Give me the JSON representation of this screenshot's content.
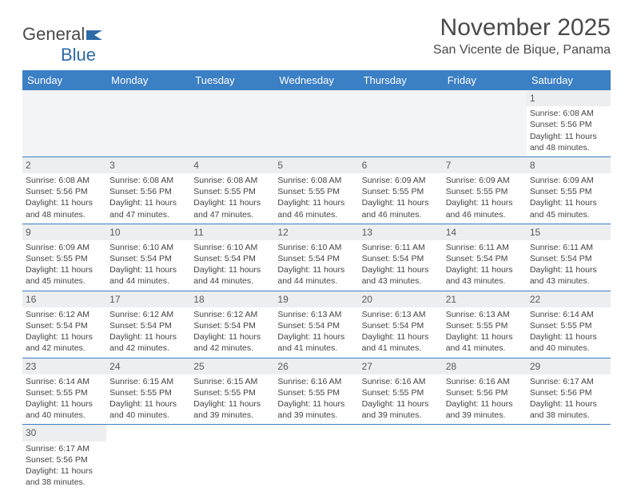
{
  "logo": {
    "text_main": "General",
    "text_accent": "Blue"
  },
  "title": "November 2025",
  "location": "San Vicente de Bique, Panama",
  "colors": {
    "header_bg": "#3b7fc4",
    "header_text": "#ffffff",
    "daynum_bg": "#eceeef",
    "border": "#3b7fc4",
    "text": "#444444",
    "logo_accent": "#2d6aa8"
  },
  "dayHeaders": [
    "Sunday",
    "Monday",
    "Tuesday",
    "Wednesday",
    "Thursday",
    "Friday",
    "Saturday"
  ],
  "weeks": [
    [
      null,
      null,
      null,
      null,
      null,
      null,
      {
        "n": "1",
        "sr": "6:08 AM",
        "ss": "5:56 PM",
        "dl": "11 hours and 48 minutes."
      }
    ],
    [
      {
        "n": "2",
        "sr": "6:08 AM",
        "ss": "5:56 PM",
        "dl": "11 hours and 48 minutes."
      },
      {
        "n": "3",
        "sr": "6:08 AM",
        "ss": "5:56 PM",
        "dl": "11 hours and 47 minutes."
      },
      {
        "n": "4",
        "sr": "6:08 AM",
        "ss": "5:55 PM",
        "dl": "11 hours and 47 minutes."
      },
      {
        "n": "5",
        "sr": "6:08 AM",
        "ss": "5:55 PM",
        "dl": "11 hours and 46 minutes."
      },
      {
        "n": "6",
        "sr": "6:09 AM",
        "ss": "5:55 PM",
        "dl": "11 hours and 46 minutes."
      },
      {
        "n": "7",
        "sr": "6:09 AM",
        "ss": "5:55 PM",
        "dl": "11 hours and 46 minutes."
      },
      {
        "n": "8",
        "sr": "6:09 AM",
        "ss": "5:55 PM",
        "dl": "11 hours and 45 minutes."
      }
    ],
    [
      {
        "n": "9",
        "sr": "6:09 AM",
        "ss": "5:55 PM",
        "dl": "11 hours and 45 minutes."
      },
      {
        "n": "10",
        "sr": "6:10 AM",
        "ss": "5:54 PM",
        "dl": "11 hours and 44 minutes."
      },
      {
        "n": "11",
        "sr": "6:10 AM",
        "ss": "5:54 PM",
        "dl": "11 hours and 44 minutes."
      },
      {
        "n": "12",
        "sr": "6:10 AM",
        "ss": "5:54 PM",
        "dl": "11 hours and 44 minutes."
      },
      {
        "n": "13",
        "sr": "6:11 AM",
        "ss": "5:54 PM",
        "dl": "11 hours and 43 minutes."
      },
      {
        "n": "14",
        "sr": "6:11 AM",
        "ss": "5:54 PM",
        "dl": "11 hours and 43 minutes."
      },
      {
        "n": "15",
        "sr": "6:11 AM",
        "ss": "5:54 PM",
        "dl": "11 hours and 43 minutes."
      }
    ],
    [
      {
        "n": "16",
        "sr": "6:12 AM",
        "ss": "5:54 PM",
        "dl": "11 hours and 42 minutes."
      },
      {
        "n": "17",
        "sr": "6:12 AM",
        "ss": "5:54 PM",
        "dl": "11 hours and 42 minutes."
      },
      {
        "n": "18",
        "sr": "6:12 AM",
        "ss": "5:54 PM",
        "dl": "11 hours and 42 minutes."
      },
      {
        "n": "19",
        "sr": "6:13 AM",
        "ss": "5:54 PM",
        "dl": "11 hours and 41 minutes."
      },
      {
        "n": "20",
        "sr": "6:13 AM",
        "ss": "5:54 PM",
        "dl": "11 hours and 41 minutes."
      },
      {
        "n": "21",
        "sr": "6:13 AM",
        "ss": "5:55 PM",
        "dl": "11 hours and 41 minutes."
      },
      {
        "n": "22",
        "sr": "6:14 AM",
        "ss": "5:55 PM",
        "dl": "11 hours and 40 minutes."
      }
    ],
    [
      {
        "n": "23",
        "sr": "6:14 AM",
        "ss": "5:55 PM",
        "dl": "11 hours and 40 minutes."
      },
      {
        "n": "24",
        "sr": "6:15 AM",
        "ss": "5:55 PM",
        "dl": "11 hours and 40 minutes."
      },
      {
        "n": "25",
        "sr": "6:15 AM",
        "ss": "5:55 PM",
        "dl": "11 hours and 39 minutes."
      },
      {
        "n": "26",
        "sr": "6:16 AM",
        "ss": "5:55 PM",
        "dl": "11 hours and 39 minutes."
      },
      {
        "n": "27",
        "sr": "6:16 AM",
        "ss": "5:55 PM",
        "dl": "11 hours and 39 minutes."
      },
      {
        "n": "28",
        "sr": "6:16 AM",
        "ss": "5:56 PM",
        "dl": "11 hours and 39 minutes."
      },
      {
        "n": "29",
        "sr": "6:17 AM",
        "ss": "5:56 PM",
        "dl": "11 hours and 38 minutes."
      }
    ],
    [
      {
        "n": "30",
        "sr": "6:17 AM",
        "ss": "5:56 PM",
        "dl": "11 hours and 38 minutes."
      },
      null,
      null,
      null,
      null,
      null,
      null
    ]
  ],
  "labels": {
    "sunrise": "Sunrise: ",
    "sunset": "Sunset: ",
    "daylight": "Daylight: "
  }
}
